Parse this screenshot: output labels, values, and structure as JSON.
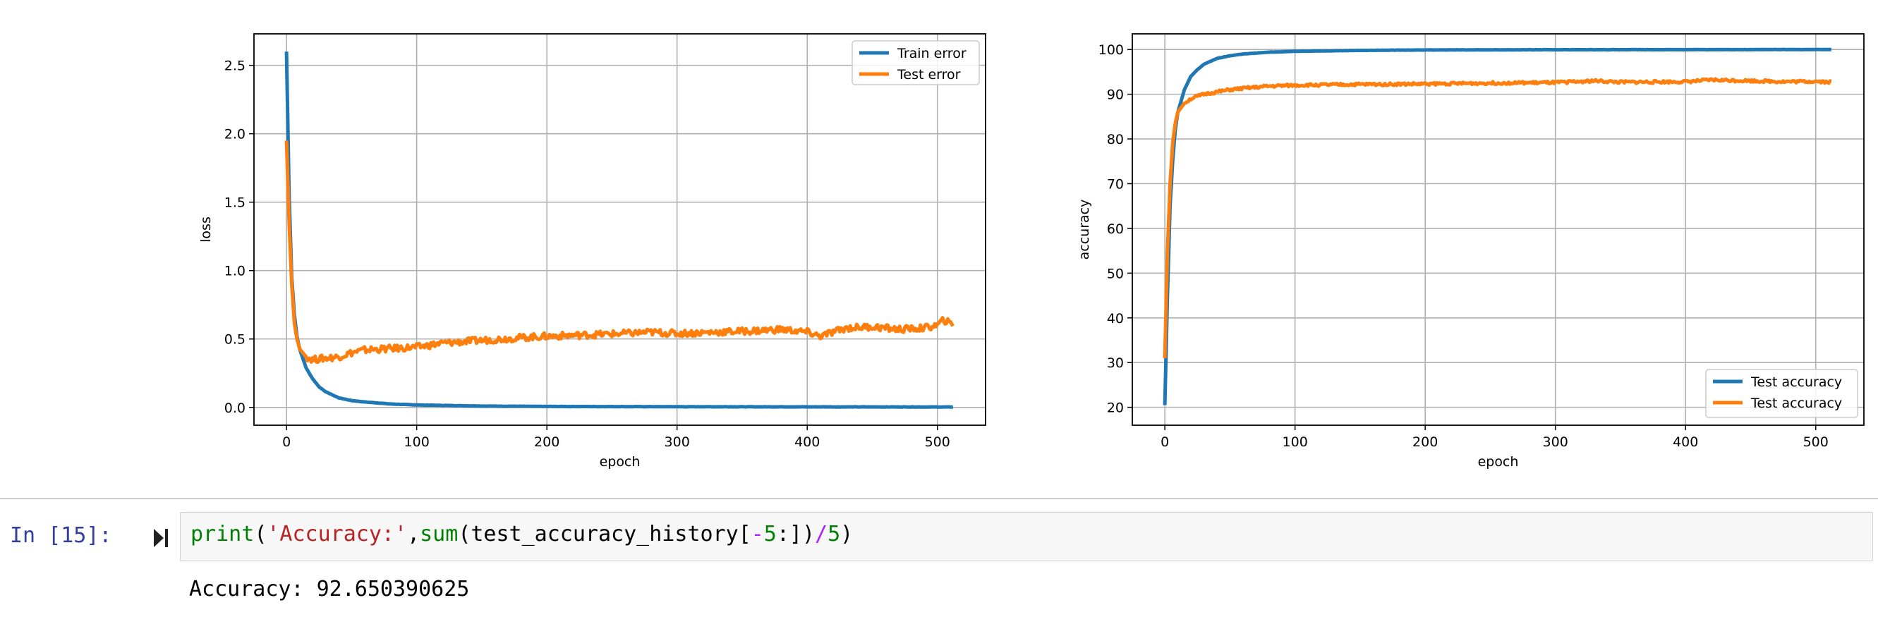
{
  "chart_data": [
    {
      "type": "line",
      "xlabel": "epoch",
      "ylabel": "loss",
      "xlim": [
        -25,
        537
      ],
      "ylim": [
        -0.13,
        2.73
      ],
      "x_ticks": [
        "0",
        "100",
        "200",
        "300",
        "400",
        "500"
      ],
      "y_ticks": [
        "0.0",
        "0.5",
        "1.0",
        "1.5",
        "2.0",
        "2.5"
      ],
      "grid": true,
      "legend": "top-right",
      "series": [
        {
          "name": "Train error",
          "color": "#1f77b4",
          "x": [
            0,
            2,
            4,
            6,
            8,
            10,
            15,
            20,
            25,
            30,
            40,
            50,
            60,
            80,
            100,
            150,
            200,
            300,
            400,
            512
          ],
          "y": [
            2.6,
            1.55,
            0.95,
            0.68,
            0.52,
            0.43,
            0.29,
            0.21,
            0.15,
            0.115,
            0.07,
            0.05,
            0.04,
            0.025,
            0.018,
            0.01,
            0.007,
            0.005,
            0.004,
            0.003
          ]
        },
        {
          "name": "Test error",
          "color": "#ff7f0e",
          "x": [
            0,
            2,
            4,
            6,
            8,
            10,
            15,
            20,
            30,
            40,
            50,
            60,
            80,
            100,
            120,
            150,
            180,
            200,
            230,
            260,
            280,
            300,
            330,
            360,
            380,
            400,
            410,
            430,
            450,
            470,
            490,
            500,
            505,
            512
          ],
          "y": [
            1.95,
            1.35,
            0.9,
            0.62,
            0.5,
            0.43,
            0.37,
            0.35,
            0.36,
            0.37,
            0.4,
            0.42,
            0.43,
            0.44,
            0.47,
            0.49,
            0.51,
            0.52,
            0.53,
            0.54,
            0.55,
            0.54,
            0.55,
            0.56,
            0.57,
            0.55,
            0.52,
            0.58,
            0.59,
            0.57,
            0.58,
            0.6,
            0.64,
            0.6
          ]
        }
      ]
    },
    {
      "type": "line",
      "xlabel": "epoch",
      "ylabel": "accuracy",
      "xlim": [
        -25,
        537
      ],
      "ylim": [
        16,
        103.5
      ],
      "x_ticks": [
        "0",
        "100",
        "200",
        "300",
        "400",
        "500"
      ],
      "y_ticks": [
        "20",
        "30",
        "40",
        "50",
        "60",
        "70",
        "80",
        "90",
        "100"
      ],
      "grid": true,
      "legend": "bottom-right",
      "series": [
        {
          "name": "Test accuracy",
          "color": "#1f77b4",
          "x": [
            0,
            2,
            4,
            6,
            8,
            10,
            15,
            20,
            25,
            30,
            40,
            50,
            60,
            80,
            100,
            150,
            200,
            300,
            400,
            512
          ],
          "y": [
            20.5,
            45,
            65,
            75,
            82,
            86,
            91,
            94,
            95.5,
            96.7,
            98,
            98.6,
            99,
            99.4,
            99.6,
            99.8,
            99.9,
            99.95,
            99.97,
            100
          ]
        },
        {
          "name": "Test accuracy",
          "color": "#ff7f0e",
          "x": [
            0,
            2,
            4,
            6,
            8,
            10,
            15,
            20,
            30,
            40,
            50,
            60,
            80,
            100,
            150,
            200,
            250,
            300,
            330,
            350,
            400,
            420,
            450,
            480,
            500,
            512
          ],
          "y": [
            31,
            55,
            70,
            79,
            83.5,
            86,
            88,
            89,
            90,
            90.5,
            91,
            91.3,
            91.8,
            92,
            92.2,
            92.3,
            92.5,
            92.6,
            93,
            92.7,
            92.8,
            93.2,
            93,
            92.8,
            92.9,
            92.7
          ]
        }
      ]
    }
  ],
  "cell": {
    "prompt": "In [15]:",
    "code": {
      "fn": "print",
      "open_paren": "(",
      "string": "'Accuracy:'",
      "comma": ",",
      "fn2": "sum",
      "open_paren2": "(",
      "var": "test_accuracy_history",
      "lbracket": "[",
      "minus": "-",
      "num1": "5",
      "slice": ":]",
      "close_paren": ")",
      "div": "/",
      "num2": "5",
      "close_paren2": ")"
    },
    "output": "Accuracy: 92.650390625"
  }
}
